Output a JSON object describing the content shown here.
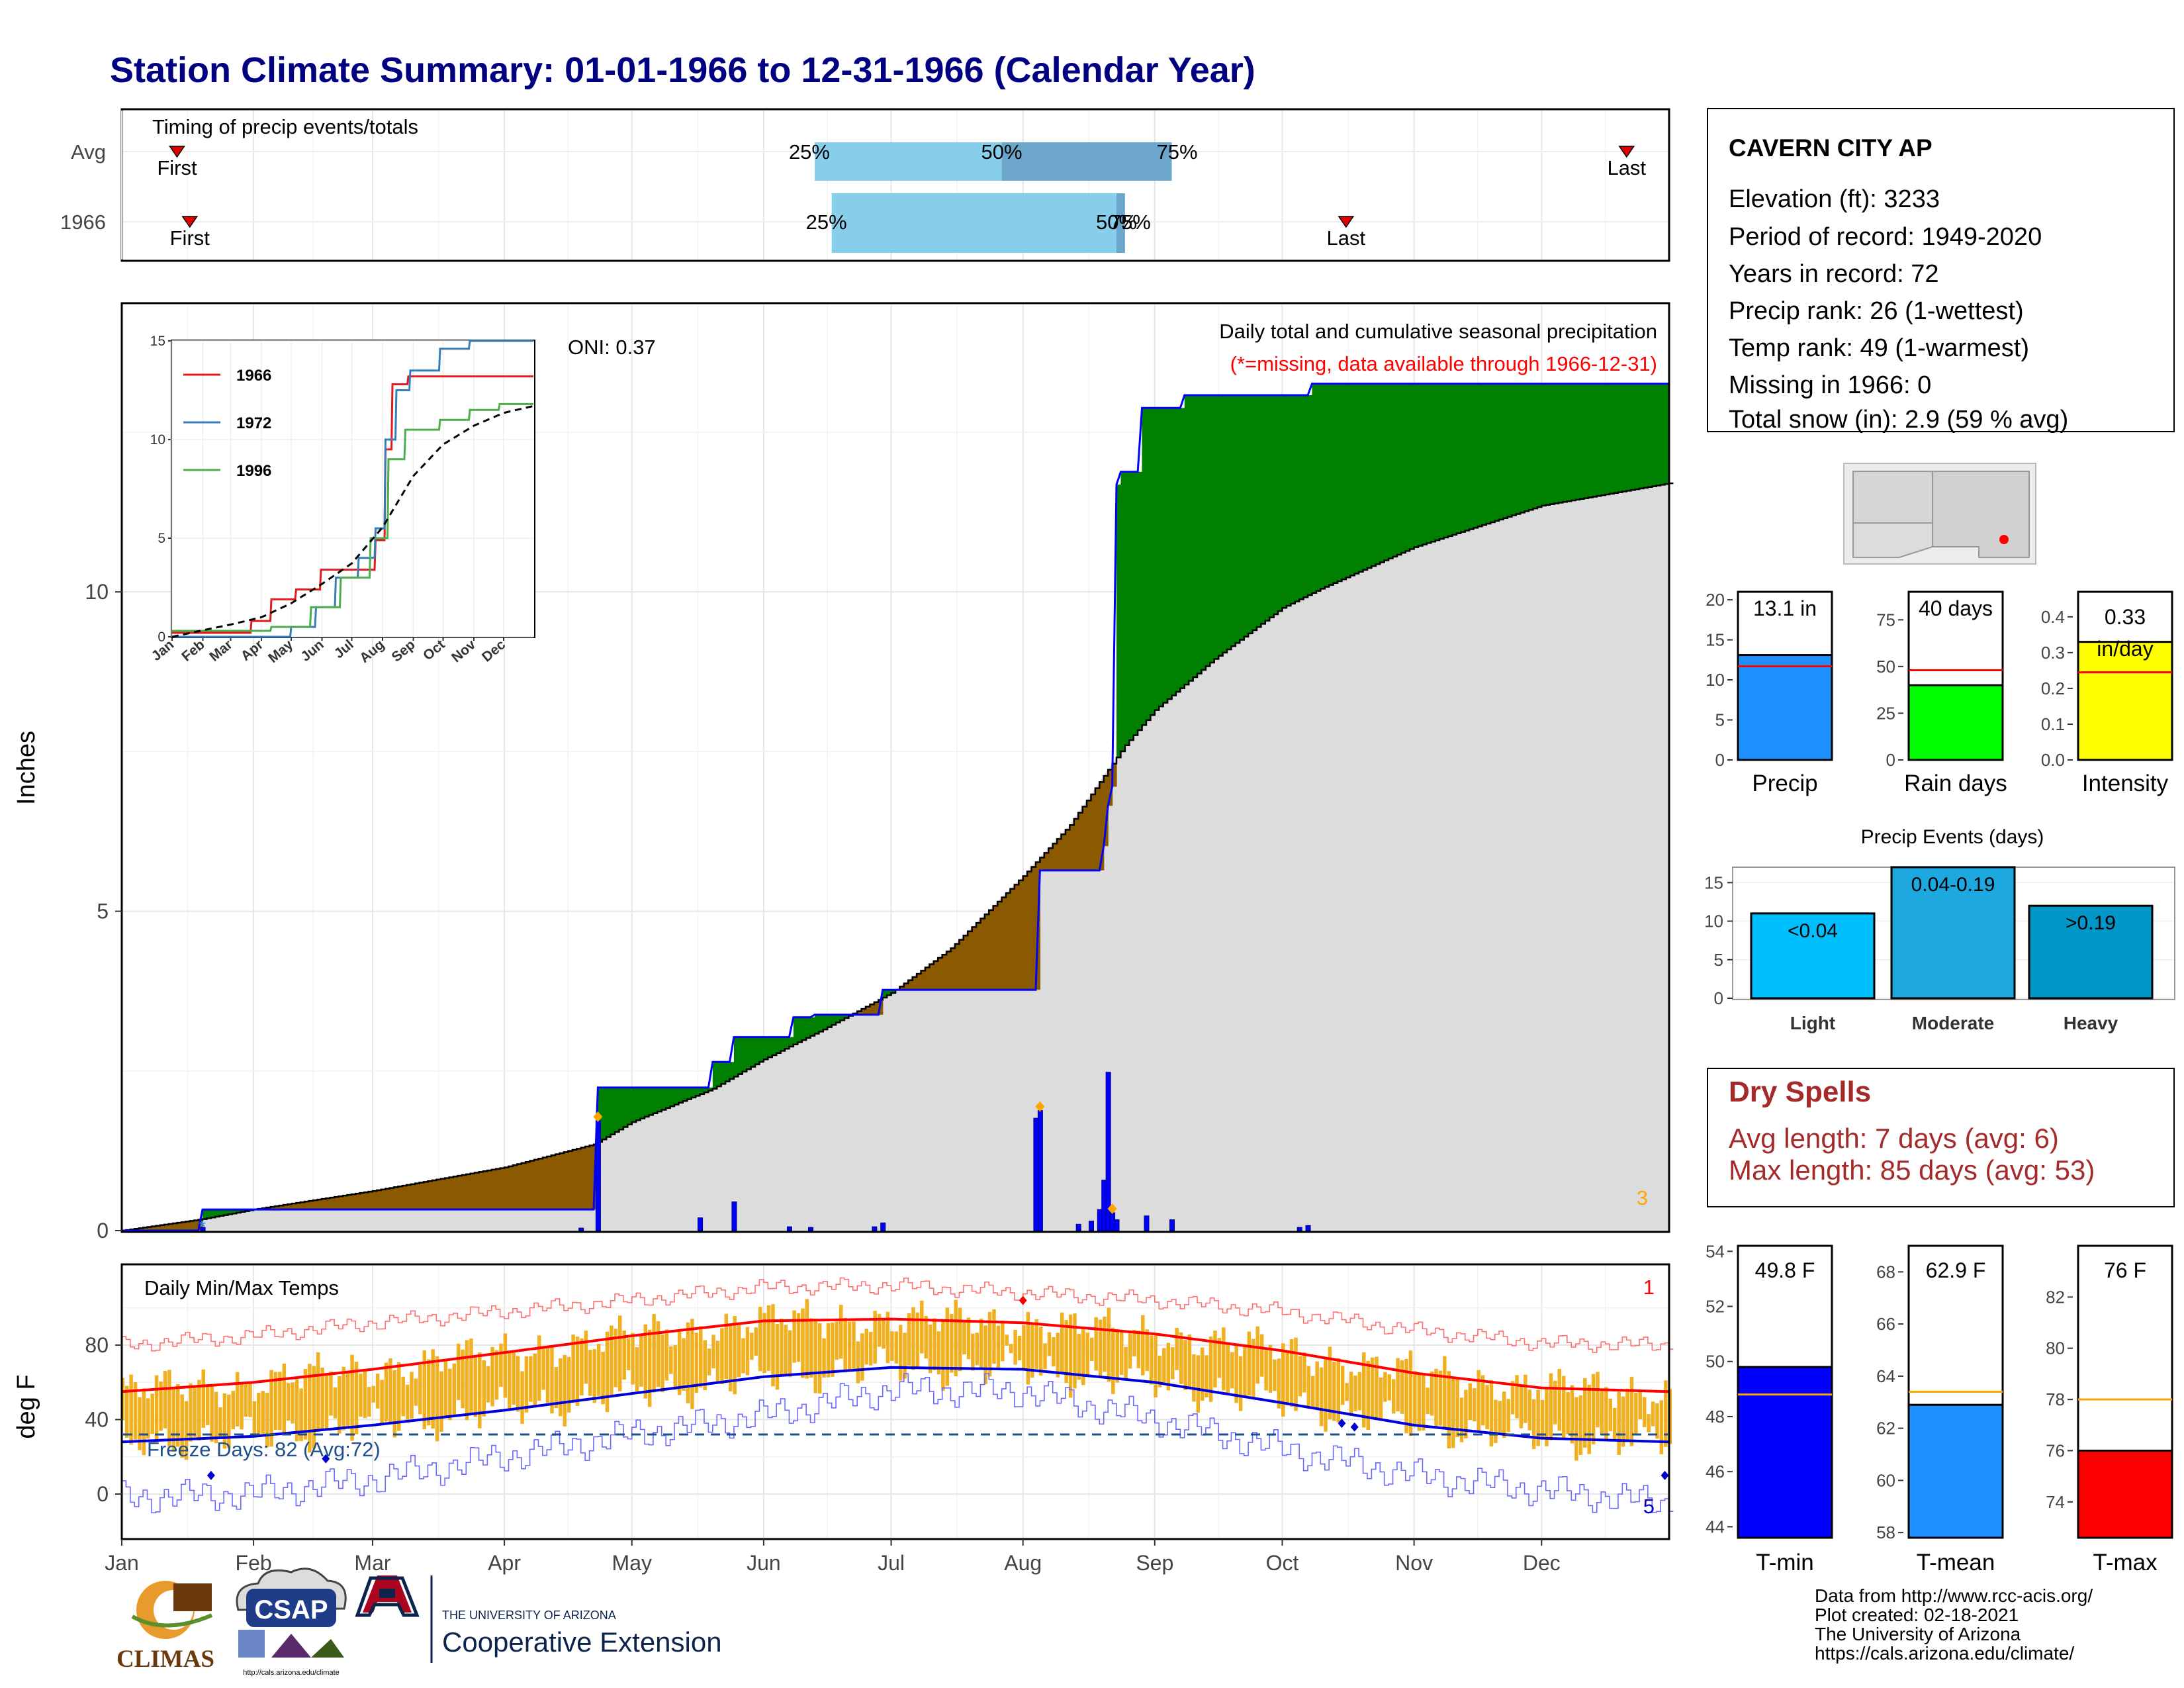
{
  "title": "Station Climate Summary: 01-01-1966 to 12-31-1966 (Calendar Year)",
  "colors": {
    "title": "#000080",
    "wet": "#008000",
    "dry": "#8B5A00",
    "avg_fill": "#dcdcdc",
    "precip_line": "#0000ff",
    "event_marker": "#ffa500",
    "tmax": "#ff0000",
    "tmin": "#0000ff",
    "temp_bar": "#f0b020",
    "light": "#00bfff",
    "moderate": "#1ea8e0",
    "heavy": "#0096c8",
    "precip_bar": "#1e90ff",
    "raindays_bar": "#00ff00",
    "intensity_bar": "#ffff00",
    "dry_spell_text": "#a52a2a"
  },
  "timing_panel": {
    "label": "Timing of precip events/totals",
    "rows": [
      "Avg",
      "1966"
    ],
    "first_label": "First",
    "last_label": "Last",
    "avg": {
      "first": "Jan 14",
      "last": "Dec 21",
      "pct25": "Jun 13",
      "pct50": "Jul 27",
      "pct75": "Sep 5"
    },
    "year": {
      "first": "Jan 17",
      "last": "Oct 16",
      "pct25": "Jun 17",
      "pct50": "Aug 23",
      "pct75": "Aug 25"
    },
    "pct_labels": {
      "p25": "25%",
      "p50": "50%",
      "p75": "75%"
    }
  },
  "station_info": {
    "name": "CAVERN CITY AP",
    "lines": [
      "Elevation (ft): 3233",
      "Period of record: 1949-2020",
      "Years in record: 72",
      "Precip rank: 26 (1-wettest)",
      "Temp rank: 49 (1-warmest)",
      "Missing in 1966: 0",
      "Total snow (in): 2.9 (59 % avg)"
    ]
  },
  "chart_data": [
    {
      "name": "cumulative_precip",
      "type": "area",
      "ylabel": "Inches",
      "yticks": [
        0,
        5,
        10
      ],
      "ylim": [
        0,
        14.5
      ],
      "xlim_day": [
        1,
        365
      ],
      "annotation_title": "Daily total and cumulative seasonal precipitation",
      "annotation_missing": "(*=missing, data available through 1966-12-31)",
      "oni": "ONI: 0.37",
      "corner_count": "3",
      "x_month_labels": [
        "Jan",
        "Feb",
        "Mar",
        "Apr",
        "May",
        "Jun",
        "Jul",
        "Aug",
        "Sep",
        "Oct",
        "Nov",
        "Dec"
      ],
      "average_cumulative": {
        "day": [
          1,
          20,
          32,
          60,
          91,
          112,
          121,
          140,
          152,
          166,
          182,
          196,
          213,
          224,
          237,
          244,
          258,
          274,
          283,
          305,
          335,
          365
        ],
        "inches": [
          0,
          0.18,
          0.33,
          0.62,
          0.99,
          1.35,
          1.7,
          2.22,
          2.68,
          3.15,
          3.72,
          4.42,
          5.55,
          6.35,
          7.6,
          8.15,
          8.95,
          9.75,
          10.05,
          10.7,
          11.35,
          11.7
        ]
      },
      "observed_cumulative": {
        "day": [
          1,
          19,
          20,
          112,
          113,
          139,
          140,
          144,
          145,
          158,
          159,
          163,
          164,
          179,
          180,
          216,
          217,
          231,
          232,
          233,
          234,
          235,
          236,
          240,
          241,
          250,
          251,
          280,
          281,
          365
        ],
        "inches": [
          0,
          0,
          0.33,
          0.33,
          2.24,
          2.24,
          2.64,
          2.64,
          3.03,
          3.03,
          3.34,
          3.34,
          3.38,
          3.38,
          3.77,
          3.77,
          5.64,
          5.64,
          6.02,
          6.65,
          6.95,
          11.68,
          11.88,
          11.88,
          12.88,
          12.88,
          13.08,
          13.08,
          13.26,
          13.26
        ]
      },
      "daily_precip": {
        "day": [
          20,
          109,
          113,
          137,
          145,
          158,
          163,
          178,
          180,
          216,
          217,
          226,
          229,
          231,
          232,
          233,
          234,
          235,
          242,
          248,
          278,
          280
        ],
        "inches": [
          0.05,
          0.04,
          1.72,
          0.2,
          0.45,
          0.06,
          0.05,
          0.06,
          0.12,
          1.76,
          1.88,
          0.1,
          0.15,
          0.33,
          0.79,
          2.48,
          0.28,
          0.17,
          0.23,
          0.17,
          0.05,
          0.08
        ]
      },
      "event_markers_day": [
        113,
        217,
        234
      ]
    },
    {
      "name": "inset_cumulative",
      "type": "line",
      "yticks": [
        0,
        5,
        10,
        15
      ],
      "ylim": [
        0,
        15
      ],
      "x_month_labels": [
        "Jan",
        "Feb",
        "Mar",
        "Apr",
        "May",
        "Jun",
        "Jul",
        "Aug",
        "Sep",
        "Oct",
        "Nov",
        "Dec"
      ],
      "series": [
        {
          "name": "1966",
          "color": "#e41a1c",
          "day": [
            1,
            80,
            81,
            100,
            101,
            125,
            126,
            150,
            151,
            205,
            206,
            215,
            216,
            222,
            223,
            238,
            239,
            365
          ],
          "inches": [
            0.2,
            0.2,
            0.8,
            0.8,
            1.9,
            1.9,
            2.4,
            2.4,
            3.4,
            3.4,
            4.9,
            4.9,
            9.5,
            9.5,
            12.8,
            12.8,
            13.2,
            13.2
          ]
        },
        {
          "name": "1972",
          "color": "#377eb8",
          "day": [
            1,
            120,
            121,
            145,
            146,
            165,
            166,
            188,
            189,
            205,
            206,
            215,
            216,
            226,
            227,
            240,
            241,
            270,
            271,
            300,
            301,
            365
          ],
          "inches": [
            0,
            0,
            0.5,
            0.5,
            1.5,
            1.5,
            3.0,
            3.0,
            4.0,
            4.0,
            5.5,
            5.5,
            10.0,
            10.0,
            12.5,
            12.5,
            13.5,
            13.5,
            14.6,
            14.6,
            15.0,
            15.0
          ]
        },
        {
          "name": "1996",
          "color": "#4daf4a",
          "day": [
            1,
            100,
            101,
            140,
            141,
            170,
            171,
            200,
            201,
            218,
            219,
            235,
            236,
            270,
            271,
            300,
            301,
            330,
            331,
            365
          ],
          "inches": [
            0.3,
            0.3,
            0.5,
            0.5,
            1.5,
            1.5,
            3.0,
            3.0,
            5.0,
            5.0,
            9.0,
            9.0,
            10.5,
            10.5,
            11.0,
            11.0,
            11.5,
            11.5,
            11.8,
            11.8
          ]
        },
        {
          "name": "avg",
          "color": "#000000",
          "day": [
            1,
            32,
            60,
            91,
            121,
            152,
            182,
            213,
            244,
            274,
            305,
            335,
            365
          ],
          "inches": [
            0,
            0.33,
            0.62,
            0.99,
            1.7,
            2.68,
            3.72,
            5.55,
            8.15,
            9.75,
            10.7,
            11.35,
            11.7
          ]
        }
      ]
    },
    {
      "name": "daily_temps",
      "type": "bar",
      "ylabel": "deg F",
      "label": "Daily Min/Max Temps",
      "yticks": [
        0,
        40,
        80
      ],
      "ylim": [
        -20,
        120
      ],
      "freeze_line_f": 32,
      "freeze_label": "Freeze Days: 82 (Avg:72)",
      "corner_top": "1",
      "corner_bottom": "5",
      "x_month_labels": [
        "Jan",
        "Feb",
        "Mar",
        "Apr",
        "May",
        "Jun",
        "Jul",
        "Aug",
        "Sep",
        "Oct",
        "Nov",
        "Dec"
      ],
      "avg_tmax": {
        "day": [
          1,
          32,
          60,
          91,
          121,
          152,
          182,
          213,
          244,
          274,
          305,
          335,
          365
        ],
        "f": [
          55,
          60,
          67,
          76,
          85,
          93,
          94,
          92,
          86,
          77,
          65,
          57,
          55
        ]
      },
      "avg_tmin": {
        "day": [
          1,
          32,
          60,
          91,
          121,
          152,
          182,
          213,
          244,
          274,
          305,
          335,
          365
        ],
        "f": [
          28,
          31,
          37,
          45,
          54,
          63,
          68,
          67,
          60,
          49,
          37,
          30,
          28
        ]
      },
      "record_high": {
        "day": [
          1,
          32,
          60,
          91,
          121,
          152,
          182,
          213,
          244,
          274,
          305,
          335,
          365
        ],
        "f": [
          80,
          85,
          92,
          98,
          104,
          111,
          112,
          108,
          104,
          98,
          88,
          81,
          80
        ]
      },
      "record_low": {
        "day": [
          1,
          32,
          60,
          91,
          121,
          152,
          182,
          213,
          244,
          274,
          305,
          335,
          365
        ],
        "f": [
          -2,
          0,
          8,
          20,
          32,
          42,
          56,
          55,
          40,
          24,
          10,
          2,
          -5
        ]
      },
      "record_high_markers": [
        {
          "day": 213,
          "f": 104
        }
      ],
      "record_low_markers": [
        {
          "day": 22,
          "f": 10
        },
        {
          "day": 49,
          "f": 19
        },
        {
          "day": 288,
          "f": 38
        },
        {
          "day": 291,
          "f": 36
        },
        {
          "day": 364,
          "f": 10
        }
      ]
    },
    {
      "name": "summary_precip",
      "type": "bar",
      "panels": [
        {
          "label": "Precip",
          "value_text": "13.1 in",
          "value": 13.1,
          "avg": 11.7,
          "yticks": [
            0,
            5,
            10,
            15,
            20
          ],
          "ylim": [
            0,
            21
          ]
        },
        {
          "label": "Rain days",
          "value_text": "40 days",
          "value": 40,
          "avg": 48,
          "yticks": [
            0,
            25,
            50,
            75
          ],
          "ylim": [
            0,
            90
          ]
        },
        {
          "label": "Intensity",
          "value_text": "0.33 in/day",
          "value": 0.33,
          "avg": 0.245,
          "yticks": [
            0.0,
            0.1,
            0.2,
            0.3,
            0.4
          ],
          "ylim": [
            0,
            0.47
          ]
        }
      ]
    },
    {
      "name": "precip_events",
      "type": "bar",
      "title": "Precip Events (days)",
      "categories": [
        "Light",
        "Moderate",
        "Heavy"
      ],
      "bar_labels": [
        "<0.04",
        "0.04-0.19",
        ">0.19"
      ],
      "values": [
        11,
        17,
        12
      ],
      "yticks": [
        0,
        5,
        10,
        15
      ],
      "ylim": [
        0,
        17
      ]
    },
    {
      "name": "summary_temps",
      "type": "bar",
      "panels": [
        {
          "label": "T-min",
          "value_text": "49.8 F",
          "value": 49.8,
          "avg": 48.8,
          "yticks": [
            44,
            46,
            48,
            50,
            52,
            54
          ],
          "ylim": [
            43.6,
            54.2
          ]
        },
        {
          "label": "T-mean",
          "value_text": "62.9 F",
          "value": 62.9,
          "avg": 63.4,
          "yticks": [
            58,
            60,
            62,
            64,
            66,
            68
          ],
          "ylim": [
            57.8,
            69.0
          ]
        },
        {
          "label": "T-max",
          "value_text": "76 F",
          "value": 76.0,
          "avg": 78.0,
          "yticks": [
            74,
            76,
            78,
            80,
            82
          ],
          "ylim": [
            72.6,
            84.0
          ]
        }
      ]
    }
  ],
  "dry_spells": {
    "title": "Dry Spells",
    "avg_line": "Avg length: 7 days (avg: 6)",
    "max_line": "Max length: 85 days (avg: 53)"
  },
  "footer": {
    "lines": [
      "Data from http://www.rcc-acis.org/",
      "Plot created: 02-18-2021",
      "The University of Arizona",
      "https://cals.arizona.edu/climate/"
    ],
    "logos": {
      "climas": "CLIMAS",
      "csap": "CSAP",
      "csap_url": "http://cals.arizona.edu/climate",
      "ua_small": "THE UNIVERSITY OF ARIZONA",
      "ua_big": "Cooperative Extension"
    }
  }
}
